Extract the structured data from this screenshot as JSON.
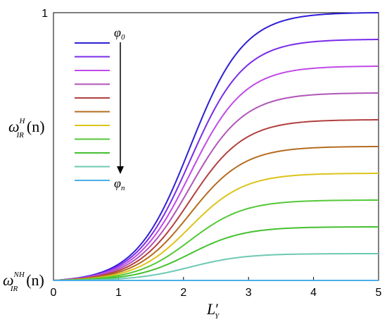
{
  "chart_data": {
    "type": "line",
    "title": "",
    "xlabel": "L′_Y",
    "xlabel_parts": {
      "base": "L",
      "prime": "′",
      "sub": "Y"
    },
    "ylabel_top": {
      "base": "ω",
      "sup": "H",
      "sub": "IR",
      "arg": "(n)"
    },
    "ylabel_bottom": {
      "base": "ω",
      "sup": "NH",
      "sub": "IR",
      "arg": "(n)"
    },
    "xlim": [
      0,
      5
    ],
    "ylim": [
      0,
      1
    ],
    "x_ticks": [
      "0",
      "1",
      "2",
      "3",
      "4",
      "5"
    ],
    "y_ticks": [
      "1"
    ],
    "grid": false,
    "legend_placement": "top-left",
    "annotation": {
      "arrow_start": {
        "base": "φ",
        "sub": "0"
      },
      "arrow_end": {
        "base": "φ",
        "sub": "n"
      }
    },
    "curve_shape": {
      "midpoint_x": 2.1,
      "steepness": 2.4
    },
    "series": [
      {
        "color": "#2f1fd6",
        "plateau": 1.0
      },
      {
        "color": "#7a2be8",
        "plateau": 0.9
      },
      {
        "color": "#c04ae8",
        "plateau": 0.8
      },
      {
        "color": "#b055b8",
        "plateau": 0.7
      },
      {
        "color": "#b2403f",
        "plateau": 0.6
      },
      {
        "color": "#b56c20",
        "plateau": 0.5
      },
      {
        "color": "#dcc41a",
        "plateau": 0.4
      },
      {
        "color": "#55c838",
        "plateau": 0.3
      },
      {
        "color": "#45c030",
        "plateau": 0.2
      },
      {
        "color": "#6ec8b4",
        "plateau": 0.1
      },
      {
        "color": "#4aaee8",
        "plateau": 0.0
      }
    ]
  }
}
